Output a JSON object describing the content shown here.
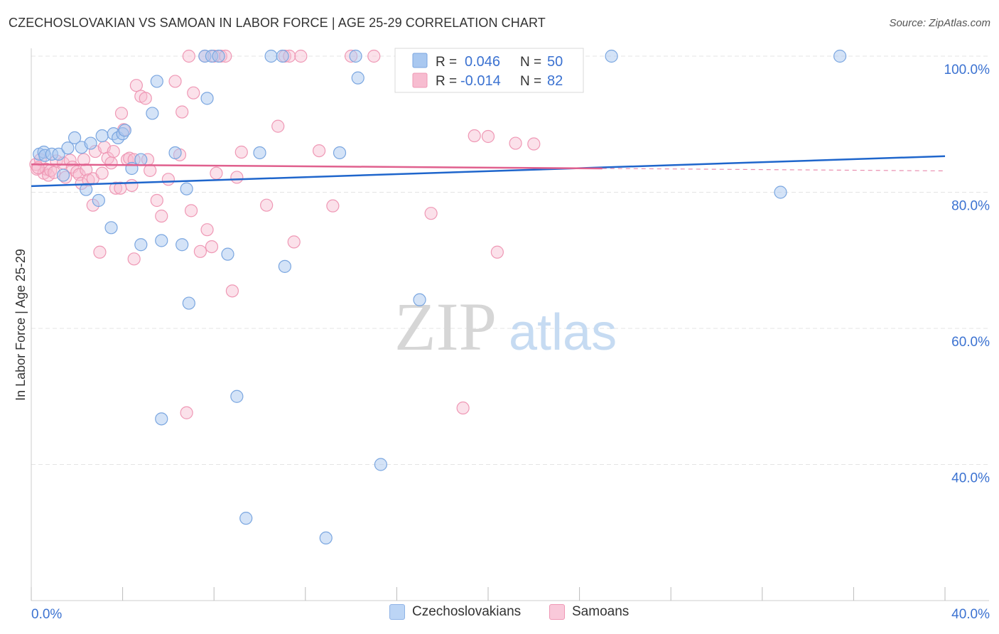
{
  "header": {
    "title": "CZECHOSLOVAKIAN VS SAMOAN IN LABOR FORCE | AGE 25-29 CORRELATION CHART",
    "source": "Source: ZipAtlas.com"
  },
  "watermark": {
    "zip": "ZIP",
    "atlas": "atlas"
  },
  "colors": {
    "blue_fill": "#a9c8f0",
    "blue_stroke": "#7aa6e0",
    "blue_line": "#1f66cc",
    "blue_text": "#3b72d1",
    "pink_fill": "#f7bcd0",
    "pink_stroke": "#ef98b5",
    "pink_line": "#e0608e",
    "grid": "#e4e4e4",
    "axis_text": "#3b72d1"
  },
  "legend_box": {
    "rows": [
      {
        "r_label": "R =",
        "r_value": "0.046",
        "n_label": "N =",
        "n_value": "50"
      },
      {
        "r_label": "R =",
        "r_value": "-0.014",
        "n_label": "N =",
        "n_value": "82"
      }
    ]
  },
  "bottom_legend": {
    "items": [
      {
        "label": "Czechoslovakians"
      },
      {
        "label": "Samoans"
      }
    ]
  },
  "chart_data": {
    "type": "scatter",
    "title": "CZECHOSLOVAKIAN VS SAMOAN IN LABOR FORCE | AGE 25-29 CORRELATION CHART",
    "xlabel": "",
    "ylabel": "In Labor Force | Age 25-29",
    "xlim": [
      0,
      40
    ],
    "ylim": [
      20,
      101
    ],
    "x_tick_labels": [
      "0.0%",
      "40.0%"
    ],
    "y_ticks": [
      100,
      80,
      60,
      40
    ],
    "y_tick_labels": [
      "100.0%",
      "80.0%",
      "60.0%",
      "40.0%"
    ],
    "grid": true,
    "series": [
      {
        "name": "Czechoslovakians",
        "r": 0.046,
        "n": 50,
        "trend": {
          "x": [
            0,
            40
          ],
          "y": [
            80.9,
            85.3
          ]
        },
        "points": [
          [
            0.35,
            85.6
          ],
          [
            0.55,
            85.9
          ],
          [
            0.6,
            85.4
          ],
          [
            0.9,
            85.6
          ],
          [
            1.2,
            85.6
          ],
          [
            1.6,
            86.5
          ],
          [
            1.9,
            88.0
          ],
          [
            2.2,
            86.6
          ],
          [
            2.6,
            87.2
          ],
          [
            3.1,
            88.3
          ],
          [
            3.6,
            88.6
          ],
          [
            3.8,
            88.0
          ],
          [
            4.0,
            88.6
          ],
          [
            4.1,
            89.1
          ],
          [
            2.4,
            80.4
          ],
          [
            2.95,
            78.8
          ],
          [
            3.5,
            74.8
          ],
          [
            4.4,
            83.5
          ],
          [
            4.8,
            84.8
          ],
          [
            5.5,
            96.3
          ],
          [
            5.3,
            91.6
          ],
          [
            6.3,
            85.8
          ],
          [
            6.8,
            80.5
          ],
          [
            5.7,
            72.9
          ],
          [
            4.8,
            72.3
          ],
          [
            6.6,
            72.3
          ],
          [
            8.6,
            70.9
          ],
          [
            9.0,
            50.0
          ],
          [
            5.7,
            46.7
          ],
          [
            6.9,
            63.7
          ],
          [
            7.7,
            93.8
          ],
          [
            7.6,
            100
          ],
          [
            7.9,
            100
          ],
          [
            8.2,
            100
          ],
          [
            10.0,
            85.8
          ],
          [
            10.5,
            100
          ],
          [
            11.0,
            100
          ],
          [
            11.1,
            69.1
          ],
          [
            12.9,
            29.2
          ],
          [
            13.5,
            85.8
          ],
          [
            14.2,
            100
          ],
          [
            14.3,
            96.8
          ],
          [
            15.3,
            40.0
          ],
          [
            17.0,
            64.2
          ],
          [
            18.7,
            100
          ],
          [
            25.4,
            100
          ],
          [
            32.8,
            80.0
          ],
          [
            35.4,
            100
          ],
          [
            9.4,
            32.1
          ],
          [
            1.4,
            82.5
          ]
        ]
      },
      {
        "name": "Samoans",
        "r": -0.014,
        "n": 82,
        "trend": {
          "x": [
            0,
            25
          ],
          "y": [
            84.1,
            83.5
          ]
        },
        "points": [
          [
            0.2,
            84.1
          ],
          [
            0.25,
            83.4
          ],
          [
            0.4,
            84.8
          ],
          [
            0.55,
            82.8
          ],
          [
            0.65,
            83.4
          ],
          [
            0.75,
            82.5
          ],
          [
            0.85,
            83.2
          ],
          [
            1.0,
            82.9
          ],
          [
            1.1,
            84.6
          ],
          [
            1.4,
            84.3
          ],
          [
            1.5,
            82.2
          ],
          [
            1.7,
            84.7
          ],
          [
            1.8,
            83.7
          ],
          [
            2.0,
            83.0
          ],
          [
            2.1,
            82.6
          ],
          [
            2.2,
            81.3
          ],
          [
            2.4,
            83.3
          ],
          [
            2.5,
            81.8
          ],
          [
            2.7,
            82.0
          ],
          [
            2.3,
            84.8
          ],
          [
            2.7,
            78.1
          ],
          [
            2.8,
            86.0
          ],
          [
            3.0,
            71.2
          ],
          [
            3.1,
            82.8
          ],
          [
            3.2,
            86.6
          ],
          [
            3.35,
            85.0
          ],
          [
            3.5,
            84.3
          ],
          [
            3.6,
            86.0
          ],
          [
            3.7,
            80.6
          ],
          [
            3.9,
            80.6
          ],
          [
            3.95,
            91.6
          ],
          [
            4.05,
            89.2
          ],
          [
            4.2,
            84.8
          ],
          [
            4.3,
            85.0
          ],
          [
            4.4,
            81.0
          ],
          [
            4.5,
            84.8
          ],
          [
            4.5,
            70.2
          ],
          [
            4.6,
            95.7
          ],
          [
            4.8,
            94.1
          ],
          [
            5.0,
            93.8
          ],
          [
            5.1,
            84.8
          ],
          [
            5.2,
            83.2
          ],
          [
            5.5,
            78.8
          ],
          [
            5.7,
            76.5
          ],
          [
            6.0,
            81.9
          ],
          [
            6.3,
            96.3
          ],
          [
            6.5,
            85.5
          ],
          [
            6.6,
            91.8
          ],
          [
            6.8,
            47.6
          ],
          [
            6.9,
            100
          ],
          [
            7.0,
            77.3
          ],
          [
            7.1,
            94.6
          ],
          [
            7.4,
            71.3
          ],
          [
            7.6,
            100
          ],
          [
            7.7,
            74.5
          ],
          [
            7.9,
            72.0
          ],
          [
            8.0,
            100
          ],
          [
            8.1,
            82.8
          ],
          [
            8.3,
            100
          ],
          [
            8.5,
            100
          ],
          [
            8.8,
            65.5
          ],
          [
            9.0,
            82.2
          ],
          [
            9.2,
            85.9
          ],
          [
            10.3,
            78.1
          ],
          [
            10.8,
            89.7
          ],
          [
            11.1,
            100
          ],
          [
            11.3,
            100
          ],
          [
            11.5,
            72.7
          ],
          [
            11.8,
            100
          ],
          [
            12.6,
            86.1
          ],
          [
            13.2,
            78.0
          ],
          [
            14.0,
            100
          ],
          [
            15.0,
            100
          ],
          [
            16.2,
            100
          ],
          [
            17.5,
            76.9
          ],
          [
            18.9,
            48.3
          ],
          [
            19.4,
            88.3
          ],
          [
            20.0,
            88.2
          ],
          [
            20.4,
            71.2
          ],
          [
            21.2,
            87.2
          ],
          [
            22.0,
            87.1
          ],
          [
            0.3,
            83.6
          ]
        ]
      }
    ]
  }
}
